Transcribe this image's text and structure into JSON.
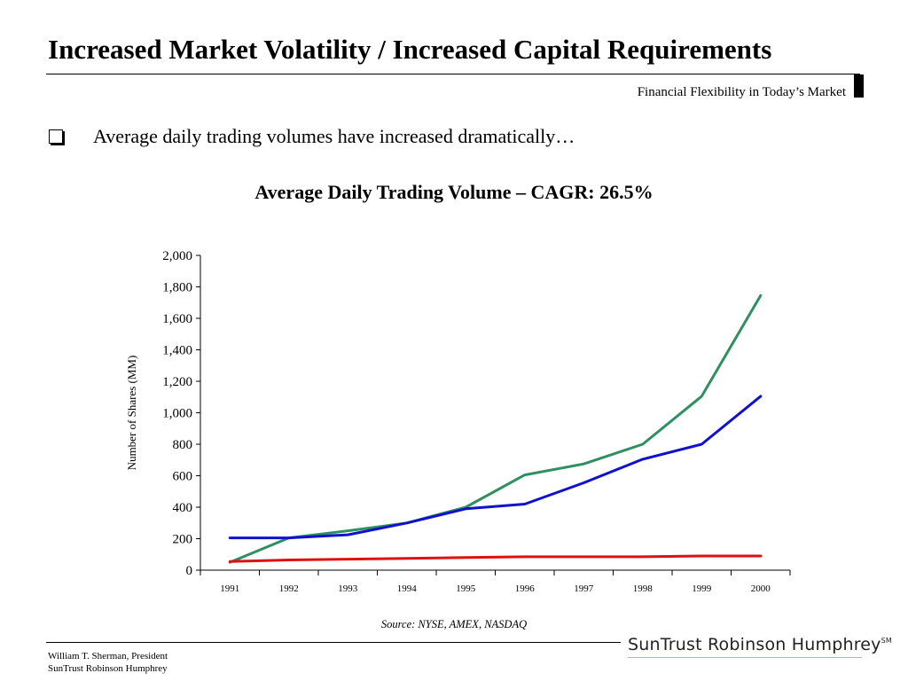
{
  "header": {
    "title": "Increased Market Volatility / Increased Capital Requirements",
    "subtitle": "Financial Flexibility in Today’s Market"
  },
  "bullet": {
    "text": "Average daily trading volumes have increased dramatically…"
  },
  "chart_data": {
    "type": "line",
    "title": "Average Daily Trading Volume – CAGR: 26.5%",
    "ylabel": "Number of Shares (MM)",
    "xlabel": "",
    "x": [
      "1991",
      "1992",
      "1993",
      "1994",
      "1995",
      "1996",
      "1997",
      "1998",
      "1999",
      "2000"
    ],
    "ylim": [
      0,
      2000
    ],
    "yticks": [
      0,
      200,
      400,
      600,
      800,
      1000,
      1200,
      1400,
      1600,
      1800,
      2000
    ],
    "ytick_labels": [
      "0",
      "200",
      "400",
      "600",
      "800",
      "1,000",
      "1,200",
      "1,400",
      "1,600",
      "1,800",
      "2,000"
    ],
    "grid": false,
    "legend": "none",
    "series": [
      {
        "color": "#2e9060",
        "values": [
          50,
          205,
          250,
          300,
          400,
          605,
          675,
          800,
          1105,
          1745
        ]
      },
      {
        "color": "#1010d0",
        "values": [
          205,
          205,
          225,
          300,
          390,
          420,
          555,
          705,
          800,
          1105
        ]
      },
      {
        "color": "#e01010",
        "values": [
          55,
          65,
          70,
          75,
          80,
          85,
          85,
          85,
          90,
          90
        ]
      }
    ]
  },
  "source": "Source: NYSE, AMEX, NASDAQ",
  "footer": {
    "line1": "William T. Sherman, President",
    "line2": "SunTrust Robinson Humphrey"
  },
  "logo": {
    "text": "SunTrust Robinson Humphrey",
    "mark": "SM"
  }
}
